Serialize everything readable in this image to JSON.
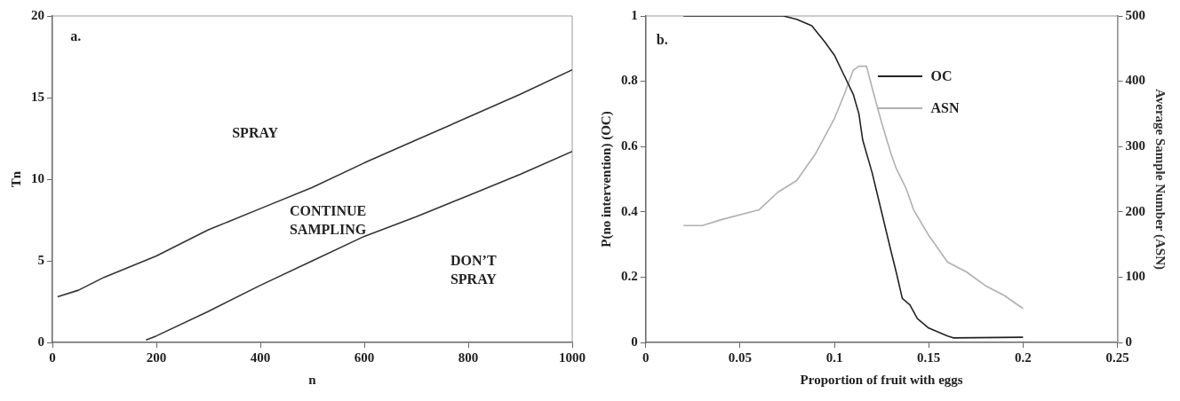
{
  "chart_data": [
    {
      "type": "line",
      "xlabel": "n",
      "ylabel": "Tn",
      "xlim": [
        0,
        1000
      ],
      "xticks": [
        0,
        200,
        400,
        600,
        800,
        1000
      ],
      "ylim": [
        0,
        20
      ],
      "yticks": [
        0,
        5,
        10,
        15,
        20
      ],
      "grid": false,
      "legend": false,
      "marker": "none",
      "series": [
        {
          "color": "#333333",
          "x": [
            10,
            50,
            100,
            200,
            300,
            400,
            500,
            600,
            700,
            800,
            900,
            1000
          ],
          "values": [
            2.8,
            3.2,
            4.0,
            5.3,
            6.9,
            8.2,
            9.5,
            11.0,
            12.4,
            13.8,
            15.2,
            16.7
          ]
        },
        {
          "color": "#333333",
          "x": [
            180,
            200,
            300,
            400,
            500,
            600,
            700,
            800,
            900,
            1000
          ],
          "values": [
            0.15,
            0.4,
            1.9,
            3.5,
            5.0,
            6.5,
            7.7,
            9.0,
            10.3,
            11.7
          ]
        }
      ],
      "annotations": [
        "a.",
        "SPRAY",
        "CONTINUE\nSAMPLING",
        "DON’T\nSPRAY"
      ]
    },
    {
      "type": "line",
      "xlabel": "Proportion of fruit with eggs",
      "ylabel": "P(no intervention) (OC)",
      "y2label": "Average Sample Number (ASN)",
      "xlim": [
        0,
        0.25
      ],
      "xticks": [
        0,
        0.05,
        0.1,
        0.15,
        0.2,
        0.25
      ],
      "ylim": [
        0,
        1
      ],
      "yticks": [
        0,
        0.2,
        0.4,
        0.6,
        0.8,
        1
      ],
      "y2lim": [
        0,
        500
      ],
      "y2ticks": [
        0,
        100,
        200,
        300,
        400,
        500
      ],
      "grid": false,
      "legend": "top right",
      "marker": "none",
      "series": [
        {
          "name": "OC",
          "color": "#222222",
          "x": [
            0.02,
            0.073,
            0.08,
            0.088,
            0.095,
            0.1,
            0.105,
            0.11,
            0.113,
            0.115,
            0.12,
            0.125,
            0.13,
            0.133,
            0.136,
            0.14,
            0.144,
            0.15,
            0.16,
            0.163,
            0.2
          ],
          "values": [
            1,
            1,
            0.99,
            0.97,
            0.92,
            0.88,
            0.82,
            0.76,
            0.7,
            0.62,
            0.52,
            0.4,
            0.28,
            0.21,
            0.135,
            0.115,
            0.073,
            0.044,
            0.02,
            0.014,
            0.016
          ]
        },
        {
          "name": "ASN",
          "color": "#b0b0b0",
          "axis": "y2",
          "x": [
            0.02,
            0.03,
            0.04,
            0.06,
            0.07,
            0.08,
            0.09,
            0.1,
            0.105,
            0.11,
            0.113,
            0.117,
            0.12,
            0.125,
            0.13,
            0.133,
            0.138,
            0.142,
            0.15,
            0.16,
            0.17,
            0.18,
            0.19,
            0.2
          ],
          "values": [
            179,
            179,
            188,
            203,
            230,
            248,
            289,
            343,
            378,
            417,
            423,
            423,
            390,
            337,
            289,
            265,
            236,
            203,
            164,
            123,
            108,
            87,
            72,
            52
          ]
        }
      ],
      "annotations": [
        "b."
      ]
    }
  ]
}
